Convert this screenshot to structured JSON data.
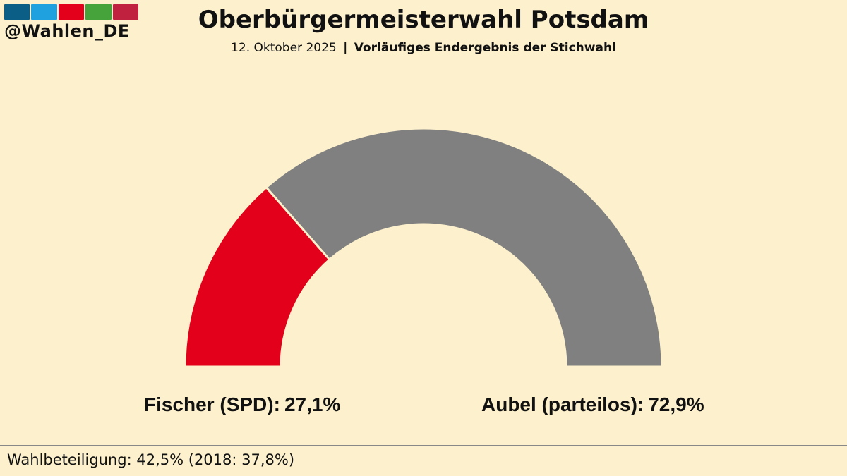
{
  "logo": {
    "handle": "@Wahlen_DE",
    "stripes": [
      "#0b5f86",
      "#1fa0df",
      "#e2001a",
      "#46a23a",
      "#c0213f"
    ]
  },
  "header": {
    "title": "Oberbürgermeisterwahl Potsdam",
    "date": "12. Oktober 2025",
    "separator": "|",
    "status": "Vorläufiges Endergebnis der Stichwahl"
  },
  "chart_data": {
    "type": "pie",
    "variant": "semicircle",
    "series": [
      {
        "name": "Fischer (SPD)",
        "value": 27.1,
        "label": "27,1%",
        "color": "#e2001a"
      },
      {
        "name": "Aubel (parteilos)",
        "value": 72.9,
        "label": "72,9%",
        "color": "#808080"
      }
    ],
    "total": 100
  },
  "candidates": [
    {
      "name": "Fischer (SPD):",
      "pct": "27,1%"
    },
    {
      "name": "Aubel (parteilos):",
      "pct": "72,9%"
    }
  ],
  "footer": {
    "turnout": "Wahlbeteiligung: 42,5% (2018: 37,8%)"
  }
}
